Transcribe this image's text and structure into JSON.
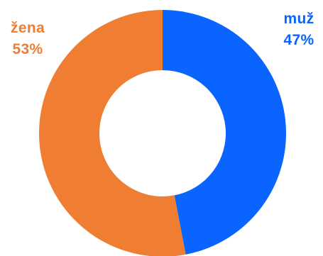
{
  "chart_data": {
    "type": "pie",
    "donut": true,
    "series": [
      {
        "name": "muž",
        "value": 47,
        "percent_label": "47%",
        "color": "#0a64ff"
      },
      {
        "name": "žena",
        "value": 53,
        "percent_label": "53%",
        "color": "#ef7e33"
      }
    ]
  },
  "labels": {
    "muz": {
      "name": "muž",
      "percent": "47%"
    },
    "zena": {
      "name": "žena",
      "percent": "53%"
    }
  }
}
